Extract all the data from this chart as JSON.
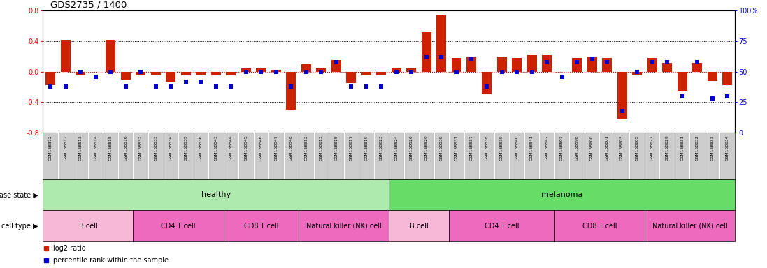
{
  "title": "GDS2735 / 1400",
  "samples": [
    "GSM158372",
    "GSM158512",
    "GSM158513",
    "GSM158514",
    "GSM158515",
    "GSM158516",
    "GSM158532",
    "GSM158533",
    "GSM158534",
    "GSM158535",
    "GSM158536",
    "GSM158543",
    "GSM158544",
    "GSM158545",
    "GSM158546",
    "GSM158547",
    "GSM158548",
    "GSM158612",
    "GSM158613",
    "GSM158615",
    "GSM158617",
    "GSM158619",
    "GSM158623",
    "GSM158524",
    "GSM158526",
    "GSM158529",
    "GSM158530",
    "GSM158531",
    "GSM158537",
    "GSM158538",
    "GSM158539",
    "GSM158540",
    "GSM158541",
    "GSM158542",
    "GSM158597",
    "GSM158598",
    "GSM158600",
    "GSM158601",
    "GSM158603",
    "GSM158605",
    "GSM158627",
    "GSM158629",
    "GSM158631",
    "GSM158632",
    "GSM158633",
    "GSM158634"
  ],
  "log2_ratio": [
    -0.18,
    0.42,
    -0.05,
    0.0,
    0.41,
    -0.1,
    -0.05,
    -0.05,
    -0.13,
    -0.05,
    -0.05,
    -0.05,
    -0.05,
    0.05,
    0.05,
    0.02,
    -0.5,
    0.1,
    0.05,
    0.15,
    -0.15,
    -0.05,
    -0.05,
    0.05,
    0.05,
    0.52,
    0.75,
    0.18,
    0.2,
    -0.3,
    0.2,
    0.18,
    0.22,
    0.22,
    0.0,
    0.18,
    0.2,
    0.18,
    -0.62,
    -0.05,
    0.18,
    0.12,
    -0.25,
    0.12,
    -0.12,
    -0.18
  ],
  "percentile": [
    38,
    38,
    50,
    46,
    50,
    38,
    50,
    38,
    38,
    42,
    42,
    38,
    38,
    50,
    50,
    50,
    38,
    50,
    50,
    58,
    38,
    38,
    38,
    50,
    50,
    62,
    62,
    50,
    60,
    38,
    50,
    50,
    50,
    58,
    46,
    58,
    60,
    58,
    18,
    50,
    58,
    58,
    30,
    58,
    28,
    30
  ],
  "disease_groups": [
    {
      "label": "healthy",
      "start": 0,
      "end": 23,
      "color": "#AEEAAE"
    },
    {
      "label": "melanoma",
      "start": 23,
      "end": 46,
      "color": "#66DD66"
    }
  ],
  "cell_groups": [
    {
      "label": "B cell",
      "start": 0,
      "end": 6,
      "color": "#F7B8D8"
    },
    {
      "label": "CD4 T cell",
      "start": 6,
      "end": 12,
      "color": "#EE6ABE"
    },
    {
      "label": "CD8 T cell",
      "start": 12,
      "end": 17,
      "color": "#EE6ABE"
    },
    {
      "label": "Natural killer (NK) cell",
      "start": 17,
      "end": 23,
      "color": "#EE6ABE"
    },
    {
      "label": "B cell",
      "start": 23,
      "end": 27,
      "color": "#F7B8D8"
    },
    {
      "label": "CD4 T cell",
      "start": 27,
      "end": 34,
      "color": "#EE6ABE"
    },
    {
      "label": "CD8 T cell",
      "start": 34,
      "end": 40,
      "color": "#EE6ABE"
    },
    {
      "label": "Natural killer (NK) cell",
      "start": 40,
      "end": 46,
      "color": "#EE6ABE"
    }
  ],
  "ylim": [
    -0.8,
    0.8
  ],
  "yticks_left": [
    -0.8,
    -0.4,
    0.0,
    0.4,
    0.8
  ],
  "yticks_right": [
    0,
    25,
    50,
    75,
    100
  ],
  "bar_color": "#CC2200",
  "dot_color": "#0000CC",
  "bg_color": "#FFFFFF",
  "label_bg": "#CCCCCC",
  "zero_line_color": "#CC0000",
  "dot_line_color": "#000000"
}
